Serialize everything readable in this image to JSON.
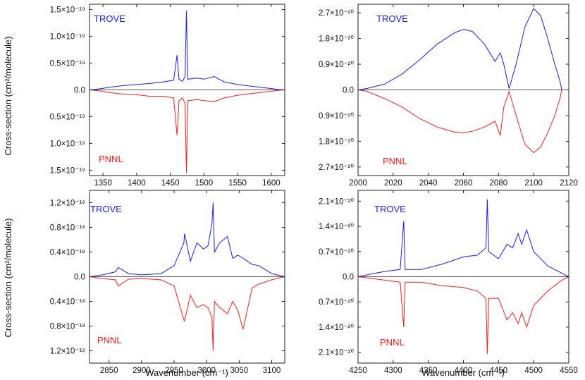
{
  "figure": {
    "shared_ylabel": "Cross-section (cm²/molecule)",
    "shared_xlabel": "Wavenumber (cm⁻¹)",
    "upper_label": "TROVE",
    "lower_label": "PNNL",
    "colors": {
      "trove": "#1a1aff",
      "pnnl": "#ff1a1a",
      "axes": "#222222"
    }
  },
  "chart_data": [
    {
      "type": "line",
      "panel": "top-left",
      "xlabel": "",
      "xlim": [
        1330,
        1620
      ],
      "xticks": [
        1350,
        1400,
        1450,
        1500,
        1550,
        1600
      ],
      "ylim": [
        -1.6,
        1.6
      ],
      "y_scale_exponent": -19,
      "yticks": [
        {
          "value": 1.5,
          "label": "1.5×10⁻¹⁹"
        },
        {
          "value": 1.0,
          "label": "1.0×10⁻¹⁹"
        },
        {
          "value": 0.5,
          "label": "0.5×10⁻¹⁹"
        },
        {
          "value": 0.0,
          "label": "0.0"
        },
        {
          "value": -0.5,
          "label": "0.5×10⁻¹⁹"
        },
        {
          "value": -1.0,
          "label": "1.0×10⁻¹⁹"
        },
        {
          "value": -1.5,
          "label": "1.5×10⁻¹⁹"
        }
      ],
      "series": [
        {
          "name": "TROVE",
          "points": [
            [
              1330,
              0.0
            ],
            [
              1345,
              0.02
            ],
            [
              1360,
              0.05
            ],
            [
              1380,
              0.08
            ],
            [
              1400,
              0.1
            ],
            [
              1420,
              0.12
            ],
            [
              1440,
              0.15
            ],
            [
              1455,
              0.18
            ],
            [
              1460,
              0.65
            ],
            [
              1463,
              0.2
            ],
            [
              1468,
              0.16
            ],
            [
              1472,
              0.25
            ],
            [
              1474,
              1.48
            ],
            [
              1476,
              0.2
            ],
            [
              1490,
              0.22
            ],
            [
              1500,
              0.2
            ],
            [
              1515,
              0.25
            ],
            [
              1530,
              0.15
            ],
            [
              1550,
              0.1
            ],
            [
              1570,
              0.07
            ],
            [
              1590,
              0.04
            ],
            [
              1610,
              0.01
            ],
            [
              1620,
              0.0
            ]
          ]
        },
        {
          "name": "PNNL",
          "points": [
            [
              1330,
              0.0
            ],
            [
              1345,
              -0.02
            ],
            [
              1360,
              -0.05
            ],
            [
              1380,
              -0.08
            ],
            [
              1400,
              -0.09
            ],
            [
              1420,
              -0.12
            ],
            [
              1440,
              -0.12
            ],
            [
              1455,
              -0.15
            ],
            [
              1460,
              -0.85
            ],
            [
              1463,
              -0.2
            ],
            [
              1468,
              -0.15
            ],
            [
              1472,
              -0.25
            ],
            [
              1474,
              -1.55
            ],
            [
              1476,
              -0.2
            ],
            [
              1490,
              -0.18
            ],
            [
              1500,
              -0.2
            ],
            [
              1515,
              -0.22
            ],
            [
              1530,
              -0.15
            ],
            [
              1550,
              -0.1
            ],
            [
              1570,
              -0.07
            ],
            [
              1590,
              -0.04
            ],
            [
              1610,
              -0.01
            ],
            [
              1620,
              0.0
            ]
          ]
        }
      ]
    },
    {
      "type": "line",
      "panel": "top-right",
      "xlabel": "",
      "xlim": [
        2000,
        2120
      ],
      "xticks": [
        2000,
        2020,
        2040,
        2060,
        2080,
        2100,
        2120
      ],
      "ylim": [
        -3.0,
        3.0
      ],
      "y_scale_exponent": -20,
      "yticks": [
        {
          "value": 2.7,
          "label": "2.7×10⁻²⁰"
        },
        {
          "value": 1.8,
          "label": "1.8×10⁻²⁰"
        },
        {
          "value": 0.9,
          "label": "0.9×10⁻²⁰"
        },
        {
          "value": 0.0,
          "label": "0.0"
        },
        {
          "value": -0.9,
          "label": "0.9×10⁻²⁰"
        },
        {
          "value": -1.8,
          "label": "1.8×10⁻²⁰"
        },
        {
          "value": -2.7,
          "label": "2.7×10⁻²⁰"
        }
      ],
      "series": [
        {
          "name": "TROVE",
          "points": [
            [
              2000,
              0.0
            ],
            [
              2005,
              0.05
            ],
            [
              2015,
              0.2
            ],
            [
              2025,
              0.55
            ],
            [
              2035,
              1.05
            ],
            [
              2045,
              1.6
            ],
            [
              2055,
              2.0
            ],
            [
              2060,
              2.12
            ],
            [
              2065,
              2.05
            ],
            [
              2072,
              1.6
            ],
            [
              2078,
              1.0
            ],
            [
              2081,
              1.3
            ],
            [
              2083,
              0.9
            ],
            [
              2086,
              0.05
            ],
            [
              2090,
              0.9
            ],
            [
              2095,
              2.2
            ],
            [
              2100,
              2.85
            ],
            [
              2104,
              2.6
            ],
            [
              2108,
              1.8
            ],
            [
              2112,
              0.9
            ],
            [
              2115,
              0.3
            ],
            [
              2116,
              0.0
            ]
          ]
        },
        {
          "name": "PNNL",
          "points": [
            [
              2000,
              0.0
            ],
            [
              2005,
              -0.05
            ],
            [
              2015,
              -0.3
            ],
            [
              2025,
              -0.6
            ],
            [
              2035,
              -1.0
            ],
            [
              2045,
              -1.3
            ],
            [
              2055,
              -1.48
            ],
            [
              2060,
              -1.5
            ],
            [
              2065,
              -1.45
            ],
            [
              2072,
              -1.3
            ],
            [
              2078,
              -1.1
            ],
            [
              2081,
              -1.6
            ],
            [
              2083,
              -0.6
            ],
            [
              2086,
              -0.05
            ],
            [
              2090,
              -0.9
            ],
            [
              2095,
              -1.9
            ],
            [
              2100,
              -2.2
            ],
            [
              2104,
              -2.0
            ],
            [
              2108,
              -1.5
            ],
            [
              2112,
              -0.9
            ],
            [
              2115,
              -0.3
            ],
            [
              2116,
              0.0
            ]
          ]
        }
      ]
    },
    {
      "type": "line",
      "panel": "bottom-left",
      "xlabel": "Wavenumber (cm⁻¹)",
      "xlim": [
        2820,
        3120
      ],
      "xticks": [
        2850,
        2900,
        2950,
        3000,
        3050,
        3100
      ],
      "ylim": [
        -1.4,
        1.4
      ],
      "y_scale_exponent": -18,
      "yticks": [
        {
          "value": 1.2,
          "label": "1.2×10⁻¹⁸"
        },
        {
          "value": 0.8,
          "label": "0.8×10⁻¹⁸"
        },
        {
          "value": 0.4,
          "label": "0.4×10⁻¹⁸"
        },
        {
          "value": 0.0,
          "label": "0.0"
        },
        {
          "value": -0.4,
          "label": "0.4×10⁻¹⁸"
        },
        {
          "value": -0.8,
          "label": "0.8×10⁻¹⁸"
        },
        {
          "value": -1.2,
          "label": "1.2×10⁻¹⁸"
        }
      ],
      "series": [
        {
          "name": "TROVE",
          "points": [
            [
              2820,
              0.0
            ],
            [
              2840,
              0.03
            ],
            [
              2860,
              0.08
            ],
            [
              2864,
              0.15
            ],
            [
              2880,
              0.05
            ],
            [
              2900,
              0.03
            ],
            [
              2930,
              0.05
            ],
            [
              2950,
              0.18
            ],
            [
              2965,
              0.55
            ],
            [
              2966,
              0.7
            ],
            [
              2975,
              0.25
            ],
            [
              2985,
              0.55
            ],
            [
              2995,
              0.45
            ],
            [
              3002,
              0.5
            ],
            [
              3008,
              0.85
            ],
            [
              3010,
              1.2
            ],
            [
              3012,
              0.4
            ],
            [
              3020,
              0.55
            ],
            [
              3032,
              0.65
            ],
            [
              3040,
              0.3
            ],
            [
              3048,
              0.35
            ],
            [
              3056,
              0.3
            ],
            [
              3070,
              0.2
            ],
            [
              3080,
              0.18
            ],
            [
              3100,
              0.05
            ],
            [
              3120,
              0.0
            ]
          ]
        },
        {
          "name": "PNNL",
          "points": [
            [
              2820,
              0.0
            ],
            [
              2840,
              -0.03
            ],
            [
              2860,
              -0.05
            ],
            [
              2864,
              -0.15
            ],
            [
              2880,
              -0.04
            ],
            [
              2900,
              -0.03
            ],
            [
              2930,
              -0.05
            ],
            [
              2950,
              -0.15
            ],
            [
              2965,
              -0.7
            ],
            [
              2966,
              -0.72
            ],
            [
              2975,
              -0.3
            ],
            [
              2985,
              -0.5
            ],
            [
              2995,
              -0.45
            ],
            [
              3002,
              -0.5
            ],
            [
              3008,
              -0.65
            ],
            [
              3010,
              -1.2
            ],
            [
              3012,
              -0.4
            ],
            [
              3020,
              -0.5
            ],
            [
              3032,
              -0.6
            ],
            [
              3040,
              -0.4
            ],
            [
              3048,
              -0.55
            ],
            [
              3056,
              -0.85
            ],
            [
              3070,
              -0.18
            ],
            [
              3080,
              -0.12
            ],
            [
              3100,
              -0.05
            ],
            [
              3120,
              0.0
            ]
          ]
        }
      ]
    },
    {
      "type": "line",
      "panel": "bottom-right",
      "xlabel": "Wavenumber (cm⁻¹)",
      "xlim": [
        4250,
        4550
      ],
      "xticks": [
        4250,
        4300,
        4350,
        4400,
        4450,
        4500,
        4550
      ],
      "ylim": [
        -2.4,
        2.4
      ],
      "y_scale_exponent": -20,
      "yticks": [
        {
          "value": 2.1,
          "label": "2.1×10⁻²⁰"
        },
        {
          "value": 1.4,
          "label": "1.4×10⁻²⁰"
        },
        {
          "value": 0.7,
          "label": "0.7×10⁻²⁰"
        },
        {
          "value": 0.0,
          "label": "0.0"
        },
        {
          "value": -0.7,
          "label": "0.7×10⁻²⁰"
        },
        {
          "value": -1.4,
          "label": "1.4×10⁻²⁰"
        },
        {
          "value": -2.1,
          "label": "2.1×10⁻²⁰"
        }
      ],
      "series": [
        {
          "name": "TROVE",
          "points": [
            [
              4250,
              0.0
            ],
            [
              4270,
              0.08
            ],
            [
              4290,
              0.15
            ],
            [
              4310,
              0.2
            ],
            [
              4315,
              1.55
            ],
            [
              4317,
              0.2
            ],
            [
              4340,
              0.2
            ],
            [
              4370,
              0.35
            ],
            [
              4400,
              0.55
            ],
            [
              4420,
              0.6
            ],
            [
              4432,
              0.8
            ],
            [
              4434,
              2.15
            ],
            [
              4436,
              0.7
            ],
            [
              4450,
              0.5
            ],
            [
              4462,
              0.9
            ],
            [
              4470,
              0.8
            ],
            [
              4478,
              1.2
            ],
            [
              4483,
              0.9
            ],
            [
              4490,
              1.3
            ],
            [
              4500,
              0.7
            ],
            [
              4520,
              0.3
            ],
            [
              4540,
              0.1
            ],
            [
              4550,
              0.0
            ]
          ]
        },
        {
          "name": "PNNL",
          "points": [
            [
              4250,
              0.0
            ],
            [
              4270,
              -0.05
            ],
            [
              4290,
              -0.1
            ],
            [
              4310,
              -0.15
            ],
            [
              4315,
              -1.4
            ],
            [
              4317,
              -0.15
            ],
            [
              4340,
              -0.15
            ],
            [
              4370,
              -0.25
            ],
            [
              4400,
              -0.3
            ],
            [
              4420,
              -0.4
            ],
            [
              4432,
              -0.6
            ],
            [
              4434,
              -2.15
            ],
            [
              4436,
              -0.6
            ],
            [
              4450,
              -0.6
            ],
            [
              4462,
              -1.2
            ],
            [
              4470,
              -1.0
            ],
            [
              4478,
              -1.3
            ],
            [
              4483,
              -1.0
            ],
            [
              4490,
              -1.4
            ],
            [
              4500,
              -0.8
            ],
            [
              4520,
              -0.4
            ],
            [
              4540,
              -0.1
            ],
            [
              4550,
              0.0
            ]
          ]
        }
      ]
    }
  ]
}
